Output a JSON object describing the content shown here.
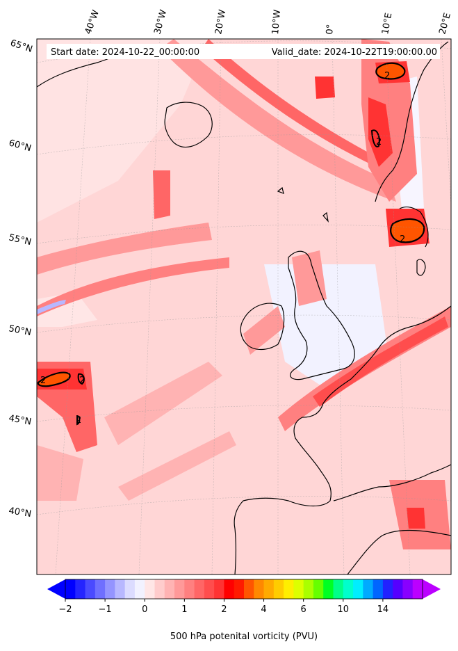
{
  "header": {
    "start_date": "Start date: 2024-10-22_00:00:00",
    "valid_date": "Valid_date: 2024-10-22T19:00:00.00"
  },
  "map": {
    "longitude_labels": [
      "40°W",
      "30°W",
      "20°W",
      "10°W",
      "0°",
      "10°E",
      "20°E"
    ],
    "latitude_labels": [
      "65°N",
      "60°N",
      "55°N",
      "50°N",
      "45°N",
      "40°N"
    ],
    "contour_label": "2",
    "gridlines": true,
    "coastline_color": "#000000"
  },
  "colorbar": {
    "label": "500 hPa potenital vorticity (PVU)",
    "ticks": [
      "−2",
      "−1",
      "0",
      "1",
      "2",
      "4",
      "6",
      "10",
      "14"
    ],
    "colors": [
      "#0000ff",
      "#2424ff",
      "#4a4aff",
      "#6f6fff",
      "#9494ff",
      "#b8b8ff",
      "#dcdcff",
      "#f2f2ff",
      "#ffe6e6",
      "#ffcccc",
      "#ffb3b3",
      "#ff9999",
      "#ff8080",
      "#ff6666",
      "#ff4d4d",
      "#ff3333",
      "#ff0000",
      "#ff1a00",
      "#ff5500",
      "#ff8800",
      "#ffaa00",
      "#ffcc00",
      "#ffee00",
      "#ddff00",
      "#aaff00",
      "#66ff00",
      "#00ff22",
      "#00ff88",
      "#00ffcc",
      "#00eeff",
      "#00aaff",
      "#0066ff",
      "#2222ff",
      "#5500ff",
      "#8800ff",
      "#bb00ff"
    ],
    "under_color": "#0000ff",
    "over_color": "#bb00ff"
  }
}
